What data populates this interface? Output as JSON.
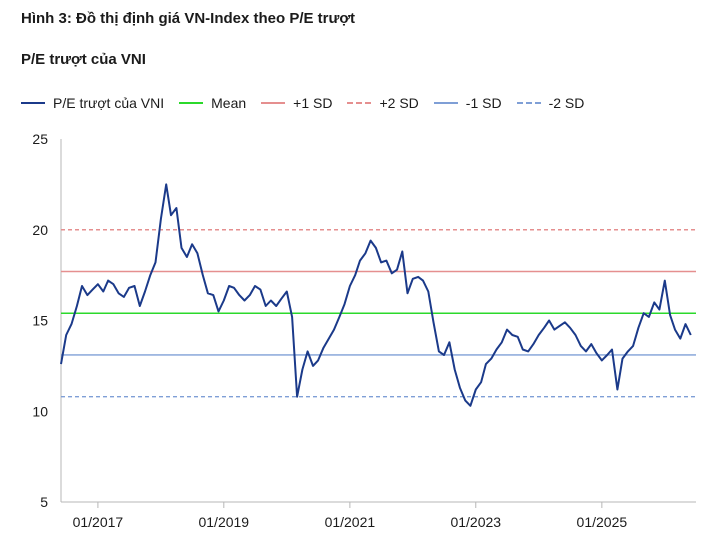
{
  "figure_title": "Hình 3: Đồ thị định giá VN-Index theo P/E trượt",
  "chart_data": {
    "type": "line",
    "title": "P/E trượt của VNI",
    "xlabel": "",
    "ylabel": "",
    "ylim": [
      5,
      25
    ],
    "yticks": [
      5,
      10,
      15,
      20,
      25
    ],
    "xlim": [
      "2016-06-01",
      "2026-07-01"
    ],
    "xticks": [
      "2017-01",
      "2019-01",
      "2021-01",
      "2023-01",
      "2025-01"
    ],
    "xtick_labels": [
      "01/2017",
      "01/2019",
      "01/2021",
      "01/2023",
      "01/2025"
    ],
    "grid": false,
    "legend_position": "top",
    "series": [
      {
        "name": "P/E trượt của VNI",
        "style": "solid",
        "color": "#1b3a8a",
        "x": [
          "2016-06",
          "2016-07",
          "2016-08",
          "2016-09",
          "2016-10",
          "2016-11",
          "2016-12",
          "2017-01",
          "2017-02",
          "2017-03",
          "2017-04",
          "2017-05",
          "2017-06",
          "2017-07",
          "2017-08",
          "2017-09",
          "2017-10",
          "2017-11",
          "2017-12",
          "2018-01",
          "2018-02",
          "2018-03",
          "2018-04",
          "2018-05",
          "2018-06",
          "2018-07",
          "2018-08",
          "2018-09",
          "2018-10",
          "2018-11",
          "2018-12",
          "2019-01",
          "2019-02",
          "2019-03",
          "2019-04",
          "2019-05",
          "2019-06",
          "2019-07",
          "2019-08",
          "2019-09",
          "2019-10",
          "2019-11",
          "2019-12",
          "2020-01",
          "2020-02",
          "2020-03",
          "2020-04",
          "2020-05",
          "2020-06",
          "2020-07",
          "2020-08",
          "2020-09",
          "2020-10",
          "2020-11",
          "2020-12",
          "2021-01",
          "2021-02",
          "2021-03",
          "2021-04",
          "2021-05",
          "2021-06",
          "2021-07",
          "2021-08",
          "2021-09",
          "2021-10",
          "2021-11",
          "2021-12",
          "2022-01",
          "2022-02",
          "2022-03",
          "2022-04",
          "2022-05",
          "2022-06",
          "2022-07",
          "2022-08",
          "2022-09",
          "2022-10",
          "2022-11",
          "2022-12",
          "2023-01",
          "2023-02",
          "2023-03",
          "2023-04",
          "2023-05",
          "2023-06",
          "2023-07",
          "2023-08",
          "2023-09",
          "2023-10",
          "2023-11",
          "2023-12",
          "2024-01",
          "2024-02",
          "2024-03",
          "2024-04",
          "2024-05",
          "2024-06",
          "2024-07",
          "2024-08",
          "2024-09",
          "2024-10",
          "2024-11",
          "2024-12",
          "2025-01",
          "2025-02",
          "2025-03",
          "2025-04",
          "2025-05",
          "2025-06",
          "2025-07",
          "2025-08",
          "2025-09",
          "2025-10",
          "2025-11",
          "2025-12",
          "2026-01",
          "2026-02",
          "2026-03",
          "2026-04",
          "2026-05",
          "2026-06"
        ],
        "values": [
          12.6,
          14.2,
          14.8,
          15.8,
          16.9,
          16.4,
          16.7,
          17.0,
          16.6,
          17.2,
          17.0,
          16.5,
          16.3,
          16.8,
          16.9,
          15.8,
          16.6,
          17.5,
          18.2,
          20.6,
          22.5,
          20.8,
          21.2,
          19.0,
          18.5,
          19.2,
          18.7,
          17.5,
          16.5,
          16.4,
          15.5,
          16.1,
          16.9,
          16.8,
          16.4,
          16.1,
          16.4,
          16.9,
          16.7,
          15.8,
          16.1,
          15.8,
          16.2,
          16.6,
          15.2,
          10.8,
          12.3,
          13.3,
          12.5,
          12.8,
          13.5,
          14.0,
          14.5,
          15.2,
          15.9,
          16.9,
          17.5,
          18.3,
          18.7,
          19.4,
          19.0,
          18.2,
          18.3,
          17.6,
          17.8,
          18.8,
          16.5,
          17.3,
          17.4,
          17.2,
          16.6,
          14.9,
          13.3,
          13.1,
          13.8,
          12.3,
          11.3,
          10.6,
          10.3,
          11.2,
          11.6,
          12.6,
          12.9,
          13.4,
          13.8,
          14.5,
          14.2,
          14.1,
          13.4,
          13.3,
          13.7,
          14.2,
          14.6,
          15.0,
          14.5,
          14.7,
          14.9,
          14.6,
          14.2,
          13.6,
          13.3,
          13.7,
          13.2,
          12.8,
          13.1,
          13.4,
          11.2,
          12.9,
          13.3,
          13.6,
          14.6,
          15.4,
          15.2,
          16.0,
          15.6,
          17.2,
          15.3,
          14.5,
          14.0,
          14.8,
          14.2
        ]
      },
      {
        "name": "Mean",
        "style": "solid",
        "color": "#2bd92b",
        "values": [
          15.4
        ]
      },
      {
        "name": "+1 SD",
        "style": "solid",
        "color": "#e58f8f",
        "values": [
          17.7
        ]
      },
      {
        "name": "+2 SD",
        "style": "dashed",
        "color": "#e58f8f",
        "values": [
          20.0
        ]
      },
      {
        "name": "-1 SD",
        "style": "solid",
        "color": "#7f9fd6",
        "values": [
          13.1
        ]
      },
      {
        "name": "-2 SD",
        "style": "dashed",
        "color": "#7f9fd6",
        "values": [
          10.8
        ]
      }
    ]
  }
}
